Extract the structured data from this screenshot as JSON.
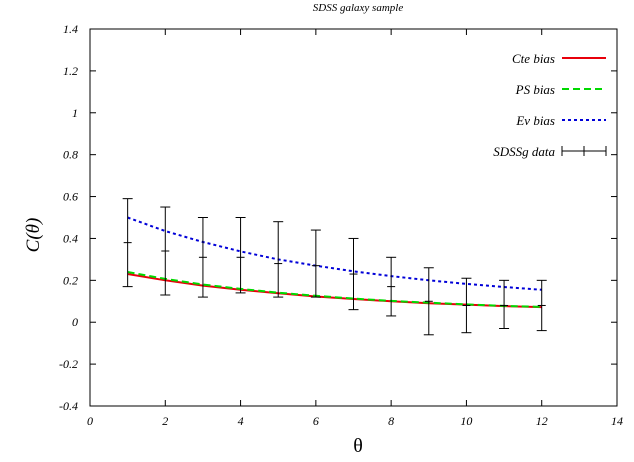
{
  "chart_data": {
    "type": "line",
    "title": "SDSS galaxy sample",
    "xlabel": "θ",
    "ylabel": "C(θ)",
    "xlim": [
      0,
      14
    ],
    "ylim": [
      -0.4,
      1.4
    ],
    "xticks": [
      0,
      2,
      4,
      6,
      8,
      10,
      12,
      14
    ],
    "yticks": [
      -0.4,
      -0.2,
      0,
      0.2,
      0.4,
      0.6,
      0.8,
      1,
      1.2,
      1.4
    ],
    "xtick_labels": [
      "0",
      "2",
      "4",
      "6",
      "8",
      "10",
      "12",
      "14"
    ],
    "ytick_labels": [
      "-0.4",
      "-0.2",
      "0",
      "0.2",
      "0.4",
      "0.6",
      "0.8",
      "1",
      "1.2",
      "1.4"
    ],
    "grid": false,
    "legend_position": "top-right",
    "series": [
      {
        "name": "Cte bias",
        "style": "solid",
        "color": "#e8000b",
        "x": [
          1,
          2,
          3,
          4,
          5,
          6,
          7,
          8,
          9,
          10,
          11,
          12
        ],
        "y": [
          0.23,
          0.2,
          0.175,
          0.155,
          0.138,
          0.123,
          0.111,
          0.1,
          0.091,
          0.084,
          0.077,
          0.072
        ]
      },
      {
        "name": "PS bias",
        "style": "dashed",
        "color": "#00d800",
        "x": [
          1,
          2,
          3,
          4,
          5,
          6,
          7,
          8,
          9,
          10,
          11,
          12
        ],
        "y": [
          0.24,
          0.207,
          0.18,
          0.159,
          0.141,
          0.126,
          0.113,
          0.102,
          0.093,
          0.085,
          0.078,
          0.073
        ]
      },
      {
        "name": "Ev bias",
        "style": "dotted",
        "color": "#0000d8",
        "x": [
          1,
          2,
          3,
          4,
          5,
          6,
          7,
          8,
          9,
          10,
          11,
          12
        ],
        "y": [
          0.5,
          0.435,
          0.383,
          0.338,
          0.3,
          0.27,
          0.243,
          0.22,
          0.2,
          0.183,
          0.168,
          0.155
        ]
      },
      {
        "name": "SDSSg data",
        "style": "errorbars",
        "color": "#000000",
        "x": [
          1,
          2,
          3,
          4,
          5,
          6,
          7,
          8,
          9,
          10,
          11,
          12
        ],
        "y": [
          0.38,
          0.34,
          0.31,
          0.31,
          0.28,
          0.27,
          0.23,
          0.17,
          0.1,
          0.08,
          0.08,
          0.08
        ],
        "ylow": [
          0.17,
          0.13,
          0.12,
          0.14,
          0.12,
          0.12,
          0.06,
          0.03,
          -0.06,
          -0.05,
          -0.03,
          -0.04
        ],
        "yhigh": [
          0.59,
          0.55,
          0.5,
          0.5,
          0.48,
          0.44,
          0.4,
          0.31,
          0.26,
          0.21,
          0.2,
          0.2
        ]
      }
    ]
  }
}
